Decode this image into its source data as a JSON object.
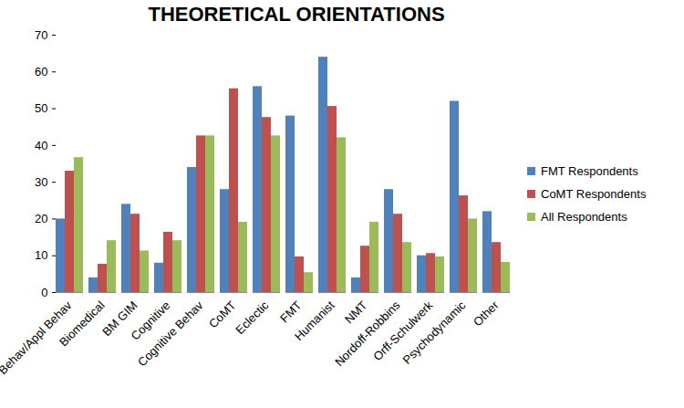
{
  "chart_data": {
    "type": "bar",
    "title": "THEORETICAL ORIENTATIONS",
    "categories": [
      "Behav/Appl Behav",
      "Biomedical",
      "BM GIM",
      "Cognitive",
      "Cognitive Behav",
      "CoMT",
      "Eclectic",
      "FMT",
      "Humanist",
      "NMT",
      "Nordoff-Robbins",
      "Orff-Schulwerk",
      "Psychodynamic",
      "Other"
    ],
    "series": [
      {
        "name": "FMT Respondents",
        "color": "#4f81bd",
        "values": [
          20,
          4,
          24,
          8,
          34,
          28,
          56,
          48,
          64,
          4,
          28,
          10,
          52,
          22
        ]
      },
      {
        "name": "CoMT Respondents",
        "color": "#c0504d",
        "values": [
          33,
          7.7,
          21.3,
          16.4,
          42.6,
          55.4,
          47.6,
          9.7,
          50.6,
          12.6,
          21.3,
          10.6,
          26.3,
          13.6
        ]
      },
      {
        "name": "All Respondents",
        "color": "#9bbb59",
        "values": [
          36.7,
          14.1,
          11.3,
          14.1,
          42.6,
          19.1,
          42.6,
          5.4,
          42.1,
          19.1,
          13.6,
          9.7,
          20,
          8.2
        ]
      }
    ],
    "ylim": [
      0,
      70
    ],
    "yticks": [
      0,
      10,
      20,
      30,
      40,
      50,
      60,
      70
    ],
    "grid": false,
    "legend": "right"
  }
}
